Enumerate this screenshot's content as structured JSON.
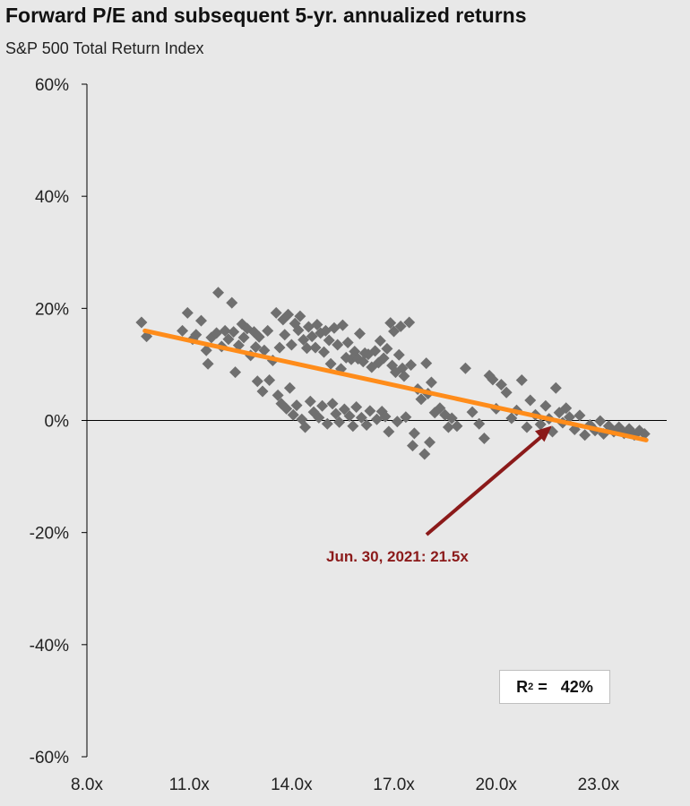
{
  "title": "Forward P/E and subsequent 5-yr. annualized returns",
  "subtitle": "S&P 500 Total Return Index",
  "colors": {
    "background": "#e8e8e8",
    "points": "#6f6f6f",
    "trendline": "#ff8c1a",
    "annotation": "#8b1a1a",
    "axis": "#000000"
  },
  "annotation": {
    "label": "Jun. 30, 2021: 21.5x",
    "pe": 21.5,
    "value": 0
  },
  "r_squared": {
    "label": "R",
    "sup": "2",
    "rest": " =   42%"
  },
  "chart_data": {
    "type": "scatter",
    "title": "Forward P/E and subsequent 5-yr. annualized returns",
    "subtitle": "S&P 500 Total Return Index",
    "xlabel": "",
    "ylabel": "",
    "xlim": [
      8,
      25
    ],
    "ylim": [
      -60,
      60
    ],
    "x_ticks": [
      "8.0x",
      "11.0x",
      "14.0x",
      "17.0x",
      "20.0x",
      "23.0x"
    ],
    "x_tick_values": [
      8,
      11,
      14,
      17,
      20,
      23
    ],
    "y_ticks": [
      "60%",
      "40%",
      "20%",
      "0%",
      "-20%",
      "-40%",
      "-60%"
    ],
    "y_tick_values": [
      60,
      40,
      20,
      0,
      -20,
      -40,
      -60
    ],
    "grid": false,
    "trendline": {
      "x": [
        9.7,
        24.4
      ],
      "y": [
        16,
        -3.5
      ]
    },
    "points": [
      [
        9.6,
        17.5
      ],
      [
        9.75,
        15.0
      ],
      [
        10.8,
        16.0
      ],
      [
        10.95,
        19.2
      ],
      [
        11.1,
        14.5
      ],
      [
        11.2,
        15.3
      ],
      [
        11.35,
        17.8
      ],
      [
        11.5,
        12.5
      ],
      [
        11.55,
        10.1
      ],
      [
        11.65,
        14.8
      ],
      [
        11.8,
        15.6
      ],
      [
        11.85,
        22.8
      ],
      [
        11.95,
        13.2
      ],
      [
        12.05,
        16.0
      ],
      [
        12.15,
        14.5
      ],
      [
        12.25,
        21.0
      ],
      [
        12.3,
        15.8
      ],
      [
        12.35,
        8.6
      ],
      [
        12.45,
        13.4
      ],
      [
        12.55,
        17.2
      ],
      [
        12.6,
        14.8
      ],
      [
        12.7,
        16.4
      ],
      [
        12.8,
        11.6
      ],
      [
        12.9,
        15.8
      ],
      [
        12.95,
        13.1
      ],
      [
        13.0,
        7.0
      ],
      [
        13.05,
        14.9
      ],
      [
        13.15,
        5.2
      ],
      [
        13.2,
        12.5
      ],
      [
        13.3,
        16.0
      ],
      [
        13.35,
        7.2
      ],
      [
        13.45,
        10.7
      ],
      [
        13.55,
        19.2
      ],
      [
        13.6,
        4.5
      ],
      [
        13.65,
        13.0
      ],
      [
        13.7,
        3.0
      ],
      [
        13.75,
        18.0
      ],
      [
        13.8,
        15.3
      ],
      [
        13.85,
        2.1
      ],
      [
        13.9,
        18.9
      ],
      [
        13.95,
        5.8
      ],
      [
        14.0,
        13.5
      ],
      [
        14.05,
        1.0
      ],
      [
        14.1,
        17.3
      ],
      [
        14.15,
        2.7
      ],
      [
        14.2,
        16.1
      ],
      [
        14.25,
        18.6
      ],
      [
        14.3,
        0.2
      ],
      [
        14.35,
        14.4
      ],
      [
        14.4,
        -1.2
      ],
      [
        14.45,
        12.9
      ],
      [
        14.5,
        16.7
      ],
      [
        14.55,
        3.4
      ],
      [
        14.6,
        15.0
      ],
      [
        14.65,
        1.5
      ],
      [
        14.7,
        13.0
      ],
      [
        14.75,
        17.1
      ],
      [
        14.8,
        0.5
      ],
      [
        14.85,
        15.6
      ],
      [
        14.9,
        2.6
      ],
      [
        14.95,
        12.2
      ],
      [
        15.0,
        16.0
      ],
      [
        15.05,
        -0.6
      ],
      [
        15.1,
        14.3
      ],
      [
        15.15,
        10.1
      ],
      [
        15.2,
        3.0
      ],
      [
        15.25,
        16.5
      ],
      [
        15.3,
        1.2
      ],
      [
        15.35,
        13.5
      ],
      [
        15.4,
        -0.3
      ],
      [
        15.45,
        9.2
      ],
      [
        15.5,
        17.0
      ],
      [
        15.55,
        2.0
      ],
      [
        15.6,
        11.2
      ],
      [
        15.65,
        13.9
      ],
      [
        15.7,
        0.8
      ],
      [
        15.75,
        10.9
      ],
      [
        15.8,
        -1.0
      ],
      [
        15.85,
        12.3
      ],
      [
        15.9,
        2.4
      ],
      [
        15.95,
        11.0
      ],
      [
        16.0,
        15.5
      ],
      [
        16.05,
        0.5
      ],
      [
        16.1,
        10.5
      ],
      [
        16.15,
        12.0
      ],
      [
        16.2,
        -0.8
      ],
      [
        16.25,
        11.8
      ],
      [
        16.3,
        1.7
      ],
      [
        16.35,
        9.5
      ],
      [
        16.45,
        12.4
      ],
      [
        16.5,
        0.2
      ],
      [
        16.55,
        10.3
      ],
      [
        16.6,
        14.2
      ],
      [
        16.65,
        1.6
      ],
      [
        16.7,
        11.1
      ],
      [
        16.75,
        0.7
      ],
      [
        16.8,
        12.8
      ],
      [
        16.85,
        -2.0
      ],
      [
        16.9,
        17.4
      ],
      [
        16.95,
        9.8
      ],
      [
        17.0,
        15.9
      ],
      [
        17.05,
        8.6
      ],
      [
        17.1,
        -0.2
      ],
      [
        17.15,
        11.7
      ],
      [
        17.2,
        16.8
      ],
      [
        17.25,
        9.3
      ],
      [
        17.3,
        7.9
      ],
      [
        17.35,
        0.6
      ],
      [
        17.45,
        17.5
      ],
      [
        17.5,
        9.9
      ],
      [
        17.55,
        -4.5
      ],
      [
        17.6,
        -2.3
      ],
      [
        17.7,
        5.6
      ],
      [
        17.8,
        3.8
      ],
      [
        17.9,
        -6.0
      ],
      [
        17.95,
        10.2
      ],
      [
        18.0,
        4.8
      ],
      [
        18.05,
        -3.9
      ],
      [
        18.1,
        6.8
      ],
      [
        18.2,
        1.4
      ],
      [
        18.35,
        2.2
      ],
      [
        18.5,
        1.0
      ],
      [
        18.6,
        -1.2
      ],
      [
        18.7,
        0.4
      ],
      [
        18.85,
        -1.0
      ],
      [
        19.1,
        9.3
      ],
      [
        19.3,
        1.5
      ],
      [
        19.5,
        -0.6
      ],
      [
        19.65,
        -3.2
      ],
      [
        19.8,
        8.0
      ],
      [
        19.9,
        7.3
      ],
      [
        20.0,
        2.1
      ],
      [
        20.15,
        6.4
      ],
      [
        20.3,
        5.0
      ],
      [
        20.45,
        0.4
      ],
      [
        20.6,
        1.8
      ],
      [
        20.75,
        7.2
      ],
      [
        20.9,
        -1.2
      ],
      [
        21.0,
        3.6
      ],
      [
        21.15,
        1.0
      ],
      [
        21.3,
        -0.7
      ],
      [
        21.45,
        2.6
      ],
      [
        21.55,
        0.3
      ],
      [
        21.65,
        -2.0
      ],
      [
        21.75,
        5.8
      ],
      [
        21.85,
        1.4
      ],
      [
        21.95,
        -0.4
      ],
      [
        22.05,
        2.2
      ],
      [
        22.15,
        0.6
      ],
      [
        22.3,
        -1.6
      ],
      [
        22.45,
        0.9
      ],
      [
        22.6,
        -2.6
      ],
      [
        22.75,
        -0.8
      ],
      [
        22.9,
        -1.8
      ],
      [
        23.05,
        -0.1
      ],
      [
        23.15,
        -2.4
      ],
      [
        23.3,
        -1.0
      ],
      [
        23.45,
        -2.0
      ],
      [
        23.6,
        -1.2
      ],
      [
        23.75,
        -2.3
      ],
      [
        23.9,
        -1.5
      ],
      [
        24.05,
        -2.6
      ],
      [
        24.2,
        -1.8
      ],
      [
        24.35,
        -2.4
      ]
    ]
  }
}
